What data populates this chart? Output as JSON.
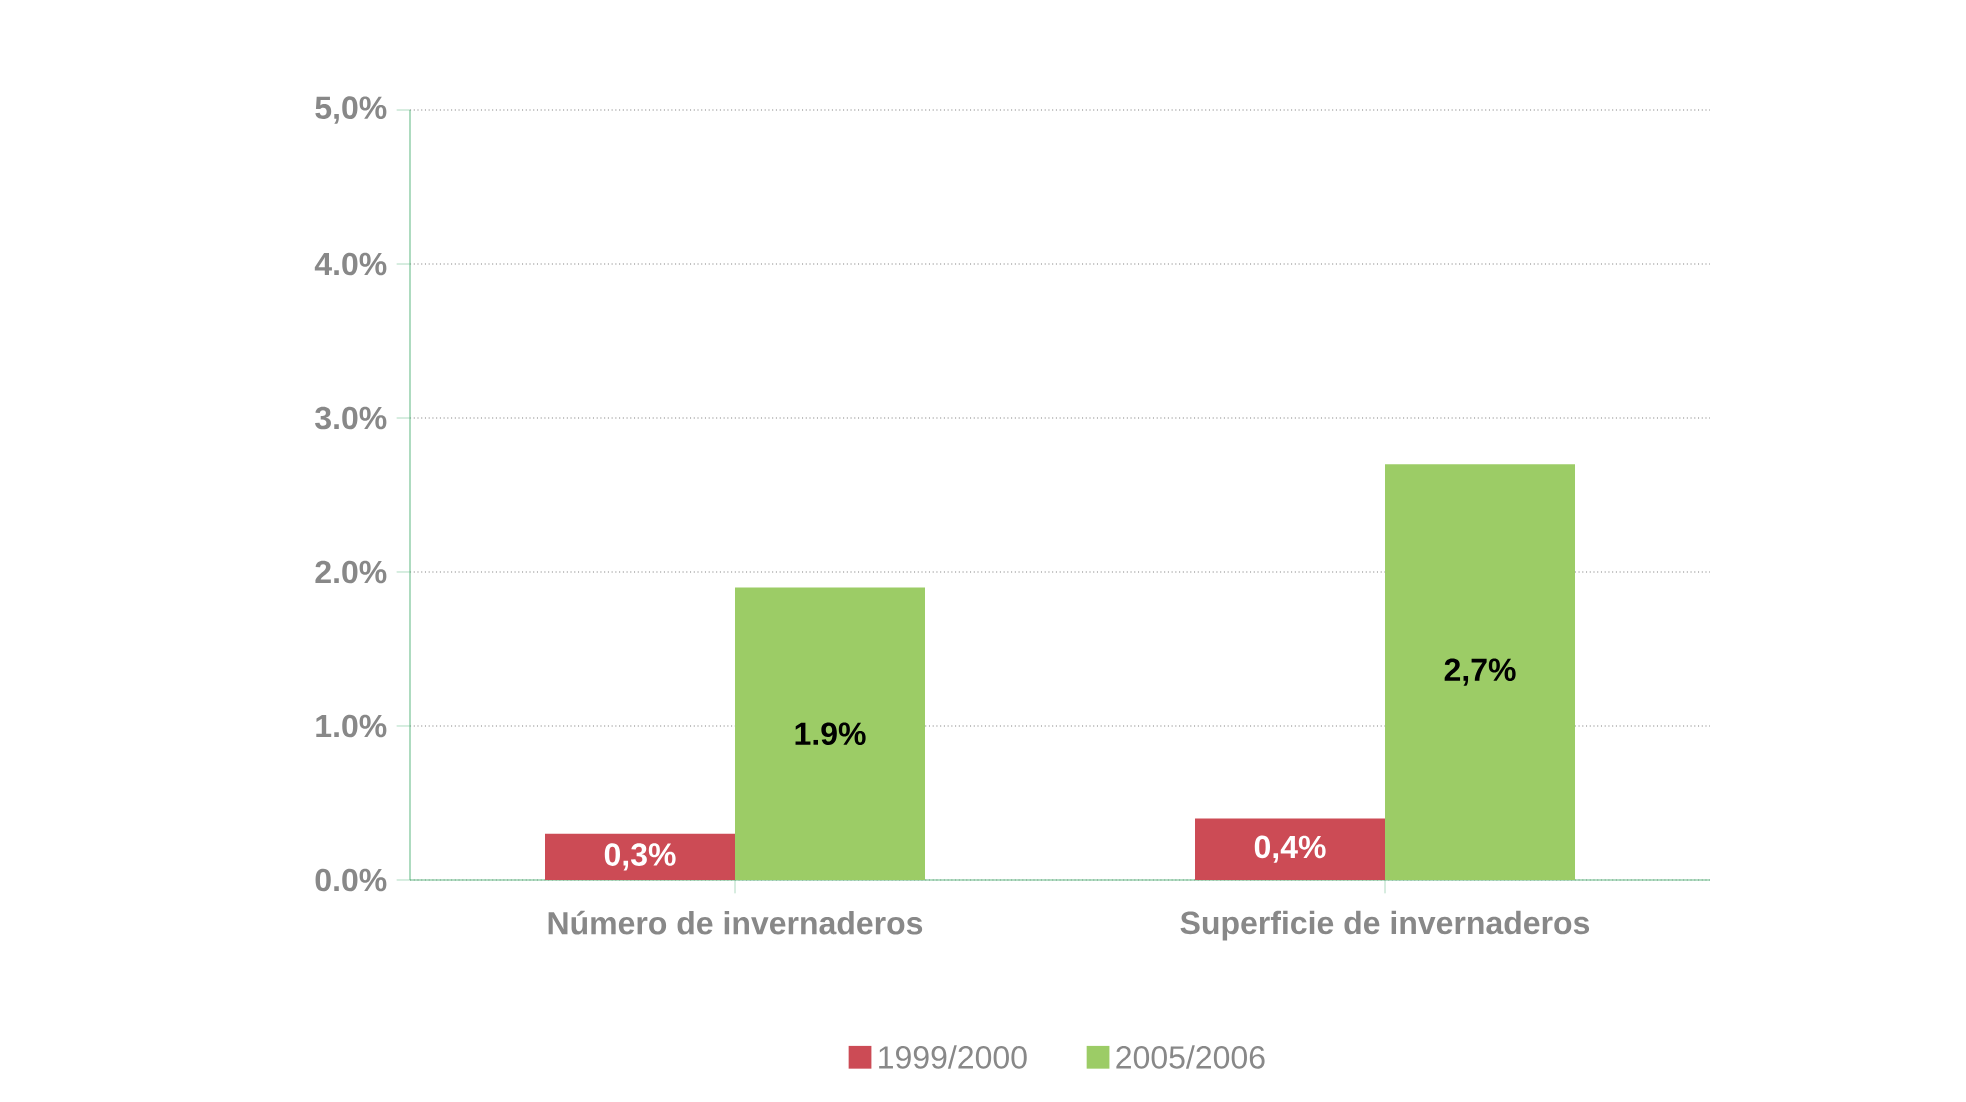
{
  "chart_data": {
    "type": "bar",
    "categories": [
      "Número de invernaderos",
      "Superficie de invernaderos"
    ],
    "series": [
      {
        "name": "1999/2000",
        "color": "#cc4b55",
        "values": [
          0.3,
          0.4
        ],
        "value_labels": [
          "0,3%",
          "0,4%"
        ]
      },
      {
        "name": "2005/2006",
        "color": "#9ccc66",
        "values": [
          1.9,
          2.7
        ],
        "value_labels": [
          "1.9%",
          "2,7%"
        ]
      }
    ],
    "ylim": [
      0,
      5
    ],
    "yticks": [
      {
        "value": 0,
        "label": "0.0%"
      },
      {
        "value": 1,
        "label": "1.0%"
      },
      {
        "value": 2,
        "label": "2.0%"
      },
      {
        "value": 3,
        "label": "3.0%"
      },
      {
        "value": 4,
        "label": "4.0%"
      },
      {
        "value": 5,
        "label": "5,0%"
      }
    ],
    "grid": "y",
    "legend": "bottom"
  }
}
